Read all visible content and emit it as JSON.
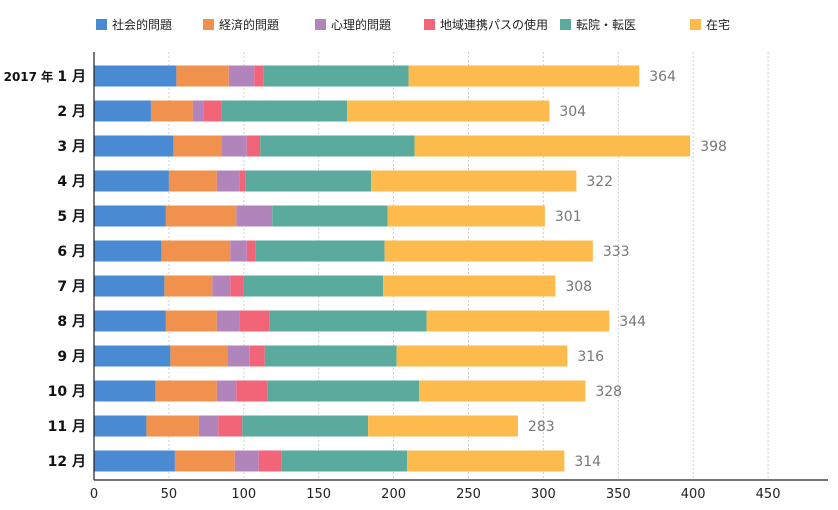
{
  "chart_data": {
    "type": "bar",
    "orientation": "horizontal",
    "stacked": true,
    "year_prefix": "2017 年",
    "categories": [
      "1 月",
      "2 月",
      "3 月",
      "4 月",
      "5 月",
      "6 月",
      "7 月",
      "8 月",
      "9 月",
      "10 月",
      "11 月",
      "12 月"
    ],
    "series": [
      {
        "name": "社会的問題",
        "color": "#4a8ad3",
        "values": [
          55,
          38,
          53,
          50,
          48,
          45,
          47,
          48,
          51,
          41,
          35,
          54
        ]
      },
      {
        "name": "経済的問題",
        "color": "#f0924d",
        "values": [
          35,
          28,
          32,
          32,
          47,
          46,
          32,
          34,
          38,
          41,
          35,
          40
        ]
      },
      {
        "name": "心理的問題",
        "color": "#b184bc",
        "values": [
          17,
          7,
          17,
          15,
          24,
          11,
          12,
          15,
          15,
          13,
          13,
          16
        ]
      },
      {
        "name": "地域連携パスの使用",
        "color": "#f26478",
        "values": [
          6,
          12,
          9,
          4,
          0,
          6,
          9,
          20,
          10,
          21,
          16,
          15
        ]
      },
      {
        "name": "転院・転医",
        "color": "#5aaa9e",
        "values": [
          97,
          84,
          103,
          84,
          77,
          86,
          93,
          105,
          88,
          101,
          84,
          84
        ]
      },
      {
        "name": "在宅",
        "color": "#fdba4d",
        "values": [
          154,
          135,
          184,
          137,
          105,
          139,
          115,
          122,
          114,
          111,
          100,
          105
        ]
      }
    ],
    "totals": [
      364,
      304,
      398,
      322,
      301,
      333,
      308,
      344,
      316,
      328,
      283,
      314
    ],
    "xlim": [
      0,
      490
    ],
    "xticks": [
      0,
      50,
      100,
      150,
      200,
      250,
      300,
      350,
      400,
      450
    ],
    "grid": true,
    "legend_position": "top"
  }
}
